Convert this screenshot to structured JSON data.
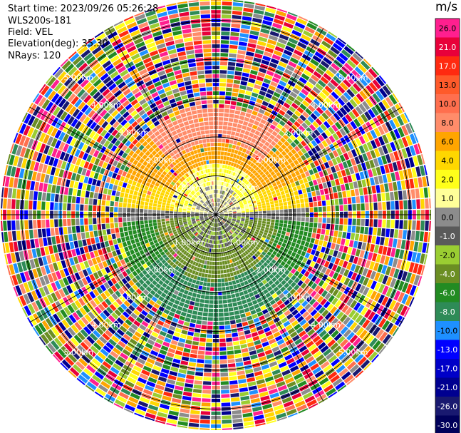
{
  "header": {
    "start_time": "Start time: 2023/09/26 05:26:28",
    "site": "WLS200s-181",
    "field": "Field: VEL",
    "elevation": "Elevation(deg): 35.30",
    "nrays": "NRays: 120"
  },
  "colorbar": {
    "unit": "m/s",
    "levels": [
      {
        "label": "26.0",
        "color": "#ff1f8f"
      },
      {
        "label": "21.0",
        "color": "#e8003a"
      },
      {
        "label": "17.0",
        "color": "#ff2a10"
      },
      {
        "label": "13.0",
        "color": "#ff5a2a"
      },
      {
        "label": "10.0",
        "color": "#ff6f4e"
      },
      {
        "label": "8.0",
        "color": "#ff8c6a"
      },
      {
        "label": "6.0",
        "color": "#ffa500"
      },
      {
        "label": "4.0",
        "color": "#ffd700"
      },
      {
        "label": "2.0",
        "color": "#ffff1a"
      },
      {
        "label": "1.0",
        "color": "#ffff99"
      },
      {
        "label": "0.0",
        "color": "#8c8c8c"
      },
      {
        "label": "-1.0",
        "color": "#5a5a5a"
      },
      {
        "label": "-2.0",
        "color": "#9acd32"
      },
      {
        "label": "-4.0",
        "color": "#6b8e23"
      },
      {
        "label": "-6.0",
        "color": "#228b22"
      },
      {
        "label": "-8.0",
        "color": "#2e8b57"
      },
      {
        "label": "-10.0",
        "color": "#1e90ff"
      },
      {
        "label": "-13.0",
        "color": "#0000ff"
      },
      {
        "label": "-17.0",
        "color": "#0000c8"
      },
      {
        "label": "-21.0",
        "color": "#000090"
      },
      {
        "label": "-26.0",
        "color": "#191970"
      },
      {
        "label": "-30.0",
        "color": "#00005a"
      }
    ]
  },
  "range_rings": [
    {
      "label": "1.00km"
    },
    {
      "label": "2.00km"
    },
    {
      "label": "3.00km"
    },
    {
      "label": "4.00km"
    },
    {
      "label": "5.00km"
    }
  ]
}
